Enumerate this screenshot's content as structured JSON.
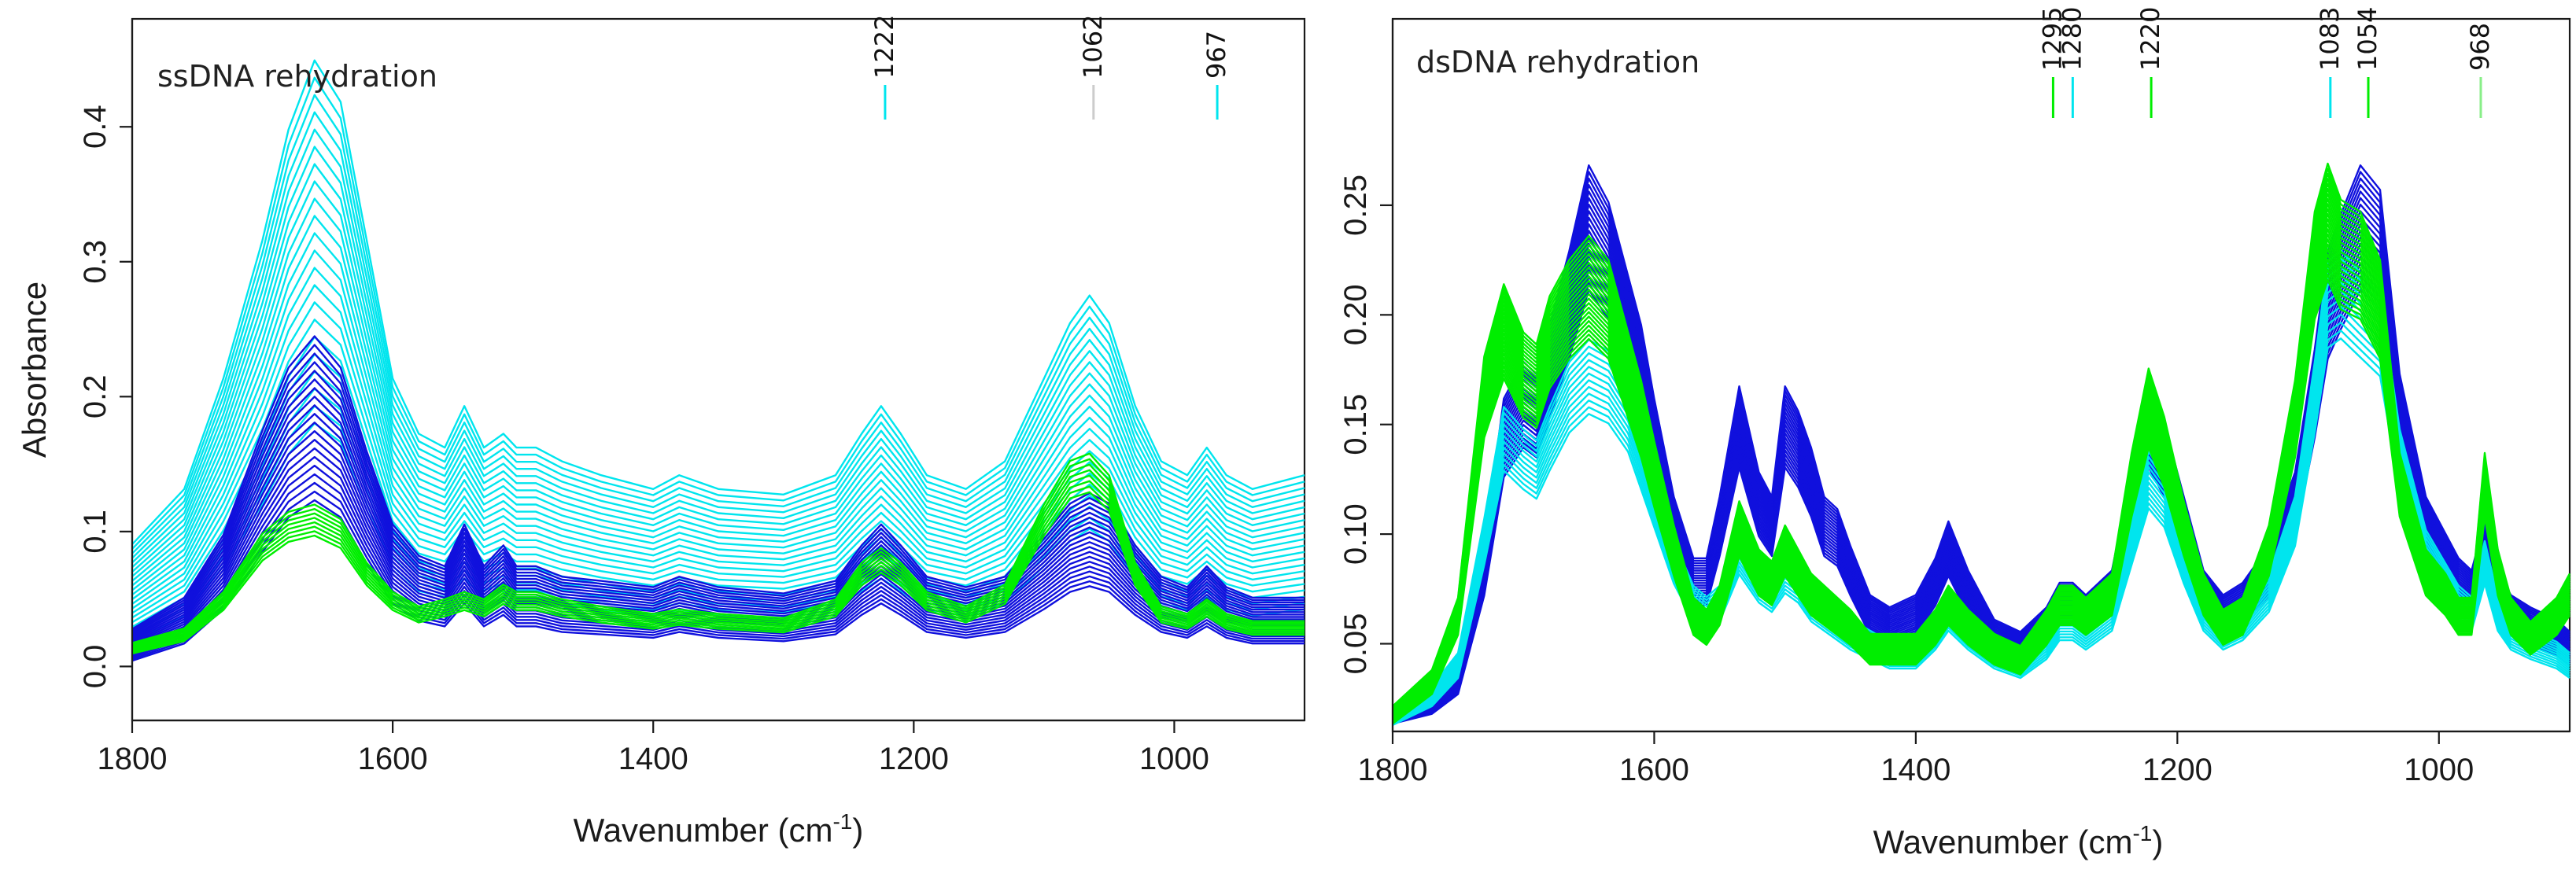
{
  "colors": {
    "cyan": "#00e5ee",
    "blue": "#1010dd",
    "green": "#00ee00",
    "axis": "#1a1a1a"
  },
  "chart_data": [
    {
      "type": "line",
      "title": "ssDNA rehydration",
      "xlabel": "Wavenumber (cm-1)",
      "xlabel_main": "Wavenumber (cm",
      "xlabel_sup": "-1",
      "xlabel_end": ")",
      "ylabel": "Absorbance",
      "xlim": [
        1800,
        900
      ],
      "ylim": [
        -0.04,
        0.48
      ],
      "x_ticks": [
        1800,
        1600,
        1400,
        1200,
        1000
      ],
      "x_tick_labels": [
        "1800",
        "1600",
        "1400",
        "1200",
        "1000"
      ],
      "y_ticks": [
        0.0,
        0.1,
        0.2,
        0.3,
        0.4
      ],
      "y_tick_labels": [
        "0.0",
        "0.1",
        "0.2",
        "0.3",
        "0.4"
      ],
      "markers": [
        {
          "label": "1222",
          "x": 1222,
          "color": "#00e5ee"
        },
        {
          "label": "1062",
          "x": 1062,
          "color": "#cccccc"
        },
        {
          "label": "967",
          "x": 967,
          "color": "#00e5ee"
        }
      ],
      "series": [
        {
          "color": "#00e5ee",
          "count": 22,
          "min_scale": 0.92,
          "max_scale": 2.05,
          "min_offset": 0.01,
          "max_offset": 0.07,
          "x": [
            1800,
            1760,
            1730,
            1700,
            1680,
            1660,
            1640,
            1620,
            1600,
            1580,
            1560,
            1545,
            1530,
            1515,
            1505,
            1490,
            1470,
            1440,
            1400,
            1380,
            1350,
            1300,
            1260,
            1240,
            1225,
            1210,
            1190,
            1160,
            1130,
            1100,
            1080,
            1065,
            1050,
            1030,
            1010,
            990,
            975,
            960,
            940,
            900
          ],
          "y": [
            0.01,
            0.03,
            0.07,
            0.12,
            0.16,
            0.185,
            0.17,
            0.12,
            0.07,
            0.05,
            0.045,
            0.06,
            0.045,
            0.05,
            0.045,
            0.045,
            0.04,
            0.035,
            0.03,
            0.035,
            0.03,
            0.028,
            0.035,
            0.05,
            0.06,
            0.05,
            0.035,
            0.03,
            0.04,
            0.07,
            0.09,
            0.1,
            0.09,
            0.06,
            0.04,
            0.035,
            0.045,
            0.035,
            0.03,
            0.035
          ]
        },
        {
          "color": "#1010dd",
          "count": 20,
          "min_scale": 0.85,
          "max_scale": 1.55,
          "min_offset": 0.0,
          "max_offset": 0.02,
          "x": [
            1800,
            1760,
            1730,
            1700,
            1680,
            1660,
            1640,
            1620,
            1600,
            1580,
            1560,
            1545,
            1530,
            1515,
            1505,
            1490,
            1470,
            1440,
            1400,
            1380,
            1350,
            1300,
            1260,
            1240,
            1225,
            1210,
            1190,
            1160,
            1130,
            1100,
            1080,
            1065,
            1050,
            1030,
            1010,
            990,
            975,
            960,
            940,
            900
          ],
          "y": [
            0.005,
            0.02,
            0.05,
            0.1,
            0.13,
            0.145,
            0.13,
            0.09,
            0.055,
            0.04,
            0.035,
            0.055,
            0.035,
            0.045,
            0.035,
            0.035,
            0.03,
            0.028,
            0.025,
            0.03,
            0.025,
            0.022,
            0.028,
            0.045,
            0.055,
            0.045,
            0.03,
            0.025,
            0.03,
            0.05,
            0.065,
            0.07,
            0.065,
            0.045,
            0.03,
            0.025,
            0.035,
            0.025,
            0.02,
            0.02
          ]
        },
        {
          "color": "#00ee00",
          "count": 8,
          "min_scale": 0.92,
          "max_scale": 1.08,
          "min_offset": 0.005,
          "max_offset": 0.012,
          "x": [
            1800,
            1760,
            1730,
            1700,
            1680,
            1660,
            1640,
            1620,
            1600,
            1580,
            1560,
            1545,
            1530,
            1515,
            1505,
            1490,
            1470,
            1440,
            1400,
            1380,
            1350,
            1300,
            1260,
            1240,
            1225,
            1210,
            1190,
            1160,
            1130,
            1100,
            1080,
            1065,
            1050,
            1030,
            1010,
            990,
            975,
            960,
            940,
            900
          ],
          "y": [
            0.005,
            0.015,
            0.04,
            0.08,
            0.095,
            0.1,
            0.09,
            0.06,
            0.04,
            0.03,
            0.035,
            0.04,
            0.035,
            0.045,
            0.04,
            0.04,
            0.035,
            0.03,
            0.025,
            0.028,
            0.025,
            0.022,
            0.035,
            0.06,
            0.07,
            0.06,
            0.04,
            0.03,
            0.045,
            0.1,
            0.13,
            0.135,
            0.12,
            0.06,
            0.03,
            0.025,
            0.035,
            0.025,
            0.02,
            0.02
          ]
        }
      ]
    },
    {
      "type": "line",
      "title": "dsDNA rehydration",
      "xlabel": "Wavenumber (cm-1)",
      "xlabel_main": "Wavenumber (cm",
      "xlabel_sup": "-1",
      "xlabel_end": ")",
      "ylabel": "",
      "xlim": [
        1800,
        900
      ],
      "ylim": [
        0.01,
        0.335
      ],
      "x_ticks": [
        1800,
        1600,
        1400,
        1200,
        1000
      ],
      "x_tick_labels": [
        "1800",
        "1600",
        "1400",
        "1200",
        "1000"
      ],
      "y_ticks": [
        0.05,
        0.1,
        0.15,
        0.2,
        0.25
      ],
      "y_tick_labels": [
        "0.05",
        "0.10",
        "0.15",
        "0.20",
        "0.25"
      ],
      "markers": [
        {
          "label": "1295",
          "x": 1295,
          "color": "#00ee00"
        },
        {
          "label": "1280",
          "x": 1280,
          "color": "#00e5ee"
        },
        {
          "label": "1220",
          "x": 1220,
          "color": "#00ee00"
        },
        {
          "label": "1083",
          "x": 1083,
          "color": "#00e5ee"
        },
        {
          "label": "1054",
          "x": 1054,
          "color": "#00ee00"
        },
        {
          "label": "968",
          "x": 968,
          "color": "#88ee88"
        }
      ],
      "series": [
        {
          "color": "#1010dd",
          "count": 20,
          "min_scale": 0.9,
          "max_scale": 1.12,
          "min_offset": 0.0,
          "max_offset": 0.005,
          "x": [
            1800,
            1770,
            1750,
            1730,
            1715,
            1700,
            1690,
            1680,
            1665,
            1650,
            1635,
            1620,
            1610,
            1600,
            1585,
            1570,
            1560,
            1550,
            1535,
            1520,
            1510,
            1500,
            1490,
            1480,
            1470,
            1460,
            1450,
            1435,
            1420,
            1400,
            1385,
            1375,
            1360,
            1340,
            1320,
            1300,
            1290,
            1280,
            1270,
            1250,
            1235,
            1222,
            1210,
            1195,
            1180,
            1165,
            1150,
            1130,
            1110,
            1095,
            1085,
            1075,
            1060,
            1045,
            1030,
            1010,
            995,
            985,
            975,
            965,
            955,
            945,
            930,
            910,
            900
          ],
          "y": [
            0.015,
            0.02,
            0.03,
            0.08,
            0.14,
            0.155,
            0.15,
            0.17,
            0.2,
            0.235,
            0.22,
            0.19,
            0.17,
            0.14,
            0.1,
            0.075,
            0.075,
            0.1,
            0.145,
            0.11,
            0.1,
            0.145,
            0.135,
            0.12,
            0.1,
            0.095,
            0.08,
            0.06,
            0.055,
            0.06,
            0.075,
            0.09,
            0.07,
            0.05,
            0.045,
            0.055,
            0.065,
            0.065,
            0.06,
            0.07,
            0.11,
            0.145,
            0.13,
            0.1,
            0.07,
            0.06,
            0.065,
            0.08,
            0.11,
            0.16,
            0.2,
            0.215,
            0.235,
            0.225,
            0.15,
            0.1,
            0.085,
            0.075,
            0.07,
            0.09,
            0.07,
            0.06,
            0.055,
            0.05,
            0.045
          ]
        },
        {
          "color": "#00e5ee",
          "count": 12,
          "min_scale": 0.86,
          "max_scale": 1.02,
          "min_offset": 0.0,
          "max_offset": 0.005,
          "x": [
            1800,
            1770,
            1750,
            1730,
            1715,
            1700,
            1690,
            1680,
            1665,
            1650,
            1635,
            1620,
            1610,
            1600,
            1585,
            1570,
            1560,
            1550,
            1535,
            1520,
            1510,
            1500,
            1490,
            1480,
            1470,
            1460,
            1450,
            1435,
            1420,
            1400,
            1385,
            1375,
            1360,
            1340,
            1320,
            1300,
            1290,
            1280,
            1270,
            1250,
            1235,
            1222,
            1210,
            1195,
            1180,
            1165,
            1150,
            1130,
            1110,
            1095,
            1085,
            1075,
            1060,
            1045,
            1030,
            1010,
            995,
            985,
            975,
            965,
            955,
            945,
            930,
            910,
            900
          ],
          "y": [
            0.015,
            0.025,
            0.04,
            0.1,
            0.15,
            0.14,
            0.135,
            0.15,
            0.17,
            0.18,
            0.175,
            0.16,
            0.14,
            0.12,
            0.09,
            0.07,
            0.065,
            0.07,
            0.095,
            0.08,
            0.075,
            0.085,
            0.08,
            0.07,
            0.065,
            0.06,
            0.055,
            0.05,
            0.045,
            0.045,
            0.055,
            0.065,
            0.055,
            0.045,
            0.04,
            0.05,
            0.06,
            0.06,
            0.055,
            0.065,
            0.1,
            0.13,
            0.12,
            0.09,
            0.065,
            0.055,
            0.06,
            0.075,
            0.11,
            0.17,
            0.215,
            0.22,
            0.21,
            0.2,
            0.14,
            0.095,
            0.08,
            0.07,
            0.065,
            0.09,
            0.065,
            0.055,
            0.05,
            0.045,
            0.04
          ]
        },
        {
          "color": "#00ee00",
          "count": 24,
          "min_scale": 0.9,
          "max_scale": 1.1,
          "min_offset": 0.0,
          "max_offset": 0.005,
          "x": [
            1800,
            1770,
            1750,
            1730,
            1715,
            1700,
            1690,
            1680,
            1665,
            1650,
            1635,
            1620,
            1610,
            1600,
            1585,
            1570,
            1560,
            1550,
            1535,
            1520,
            1510,
            1500,
            1490,
            1480,
            1470,
            1460,
            1450,
            1435,
            1420,
            1400,
            1385,
            1375,
            1360,
            1340,
            1320,
            1300,
            1290,
            1280,
            1270,
            1250,
            1235,
            1222,
            1210,
            1195,
            1180,
            1165,
            1150,
            1130,
            1110,
            1095,
            1085,
            1075,
            1060,
            1045,
            1030,
            1010,
            995,
            985,
            975,
            965,
            955,
            945,
            930,
            910,
            900
          ],
          "y": [
            0.015,
            0.03,
            0.06,
            0.16,
            0.19,
            0.17,
            0.165,
            0.185,
            0.2,
            0.21,
            0.2,
            0.17,
            0.15,
            0.125,
            0.09,
            0.06,
            0.055,
            0.065,
            0.1,
            0.08,
            0.075,
            0.09,
            0.08,
            0.07,
            0.065,
            0.06,
            0.055,
            0.045,
            0.045,
            0.045,
            0.055,
            0.065,
            0.055,
            0.045,
            0.04,
            0.055,
            0.065,
            0.065,
            0.06,
            0.07,
            0.12,
            0.155,
            0.135,
            0.1,
            0.07,
            0.055,
            0.06,
            0.09,
            0.15,
            0.22,
            0.24,
            0.225,
            0.22,
            0.2,
            0.12,
            0.08,
            0.07,
            0.06,
            0.06,
            0.12,
            0.08,
            0.06,
            0.05,
            0.06,
            0.07
          ]
        }
      ]
    }
  ]
}
